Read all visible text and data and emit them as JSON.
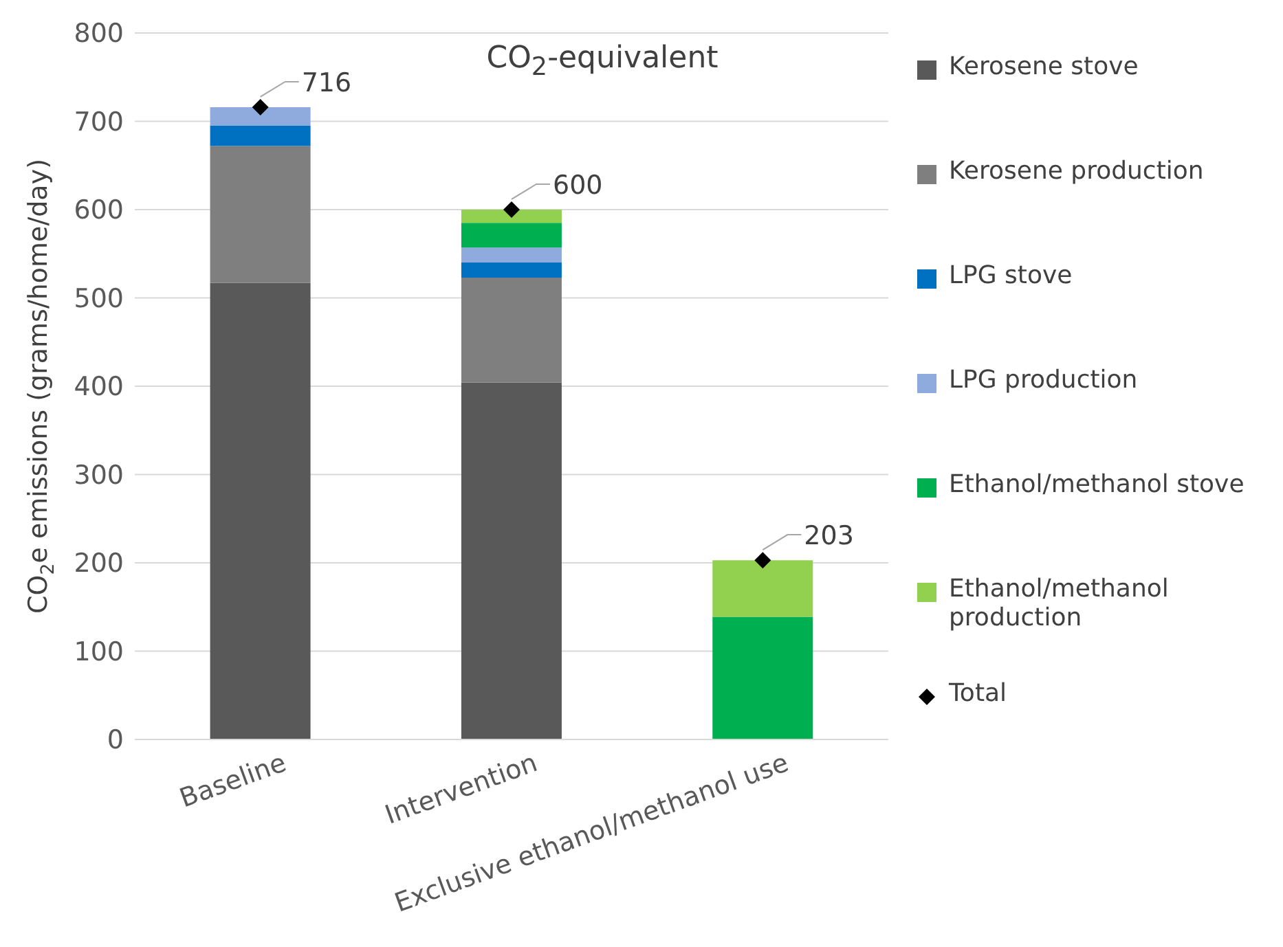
{
  "chart_data": {
    "type": "bar",
    "stacked": true,
    "title": "CO$_{2}$-equivalent",
    "ylabel": "CO$_{2}$e emissions (grams/home/day)",
    "categories": [
      "Baseline",
      "Intervention",
      "Exclusive ethanol/methanol use"
    ],
    "series": [
      {
        "name": "Kerosene stove",
        "color": "#595959",
        "values": [
          517,
          404,
          null
        ]
      },
      {
        "name": "Kerosene production",
        "color": "#7f7f7f",
        "values": [
          155,
          119,
          null
        ]
      },
      {
        "name": "LPG stove",
        "color": "#0070c0",
        "values": [
          23,
          17,
          null
        ]
      },
      {
        "name": "LPG production",
        "color": "#8faadc",
        "values": [
          21,
          17,
          null
        ]
      },
      {
        "name": "Ethanol/methanol stove",
        "color": "#00b050",
        "values": [
          null,
          28,
          139
        ]
      },
      {
        "name": "Ethanol/methanol production",
        "color": "#92d050",
        "values": [
          null,
          15,
          64
        ]
      },
      {
        "name": "Total",
        "type": "scatter",
        "color": "#000000",
        "marker": "diamond",
        "values": [
          716,
          600,
          203
        ],
        "value_labels": [
          "716",
          "600",
          "203"
        ]
      }
    ],
    "ylim": [
      0,
      800
    ],
    "yticks": [
      0,
      100,
      200,
      300,
      400,
      500,
      600,
      700,
      800
    ],
    "grid": "y",
    "legend": "right"
  }
}
